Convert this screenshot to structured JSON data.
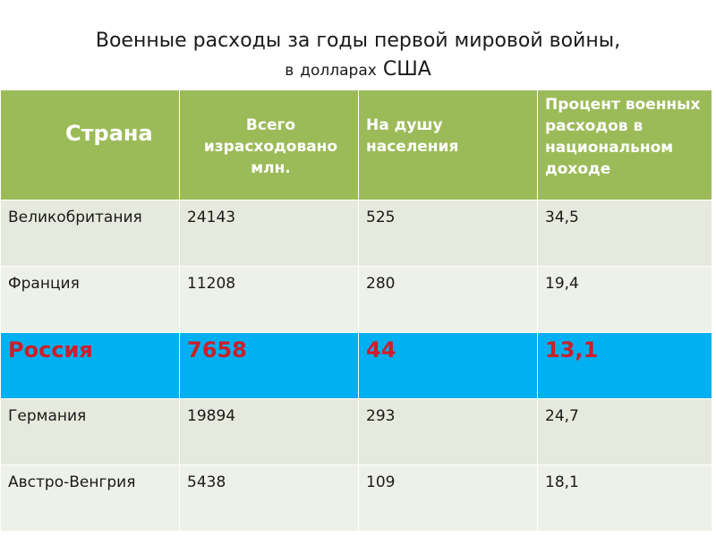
{
  "title": {
    "line1": "Военные расходы за годы первой мировой войны,",
    "line2_prefix": "в",
    "line2_middle": "долларах",
    "line2_suffix": "США"
  },
  "table": {
    "headers": [
      "Страна",
      "Всего израсходовано млн.",
      "На душу населения",
      "Процент военных расходов в национальном доходе"
    ],
    "rows": [
      {
        "country": "Великобритания",
        "total": "24143",
        "per_capita": "525",
        "percent": "34,5"
      },
      {
        "country": "Франция",
        "total": "11208",
        "per_capita": "280",
        "percent": "19,4"
      },
      {
        "country": "Россия",
        "total": "7658",
        "per_capita": "44",
        "percent": "13,1"
      },
      {
        "country": "Германия",
        "total": "19894",
        "per_capita": "293",
        "percent": "24,7"
      },
      {
        "country": "Австро-Венгрия",
        "total": "5438",
        "per_capita": "109",
        "percent": "18,1"
      }
    ]
  },
  "colors": {
    "header_bg": "#9bbb59",
    "row_light": "#e6e9dd",
    "row_lighter": "#eef0ea",
    "highlight_bg": "#00b0f0",
    "highlight_text": "#cc1f2a"
  }
}
